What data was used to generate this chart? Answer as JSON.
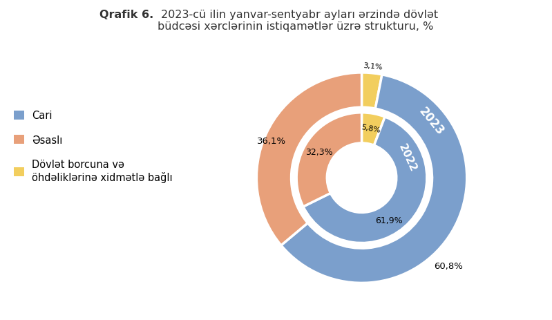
{
  "title_bold": "Qrafik 6.",
  "title_rest": " 2023-cü ilin yanvar-sentyabr ayları ərzində dövlət\nbüdcəsi xərclərinin istiqamətlər üzrə strukturu, %",
  "outer_values": [
    60.8,
    36.1,
    3.1
  ],
  "inner_values": [
    61.9,
    32.3,
    5.8
  ],
  "colors": [
    "#7B9FCC",
    "#E8A07A",
    "#F2CE5E"
  ],
  "outer_labels": [
    "60,8%",
    "36,1%",
    "3,1%"
  ],
  "inner_labels": [
    "61,9%",
    "32,3%",
    "5,8%"
  ],
  "year_outer": "2023",
  "year_inner": "2022",
  "legend_labels": [
    "Cari",
    "Əsaslı",
    "Dövlət borcuna və\nöhdəliklərinə xidmətlə bağlı"
  ],
  "background_color": "#ffffff",
  "outer_r": 1.0,
  "outer_inner_r": 0.67,
  "inner_r": 0.62,
  "inner_inner_r": 0.33
}
